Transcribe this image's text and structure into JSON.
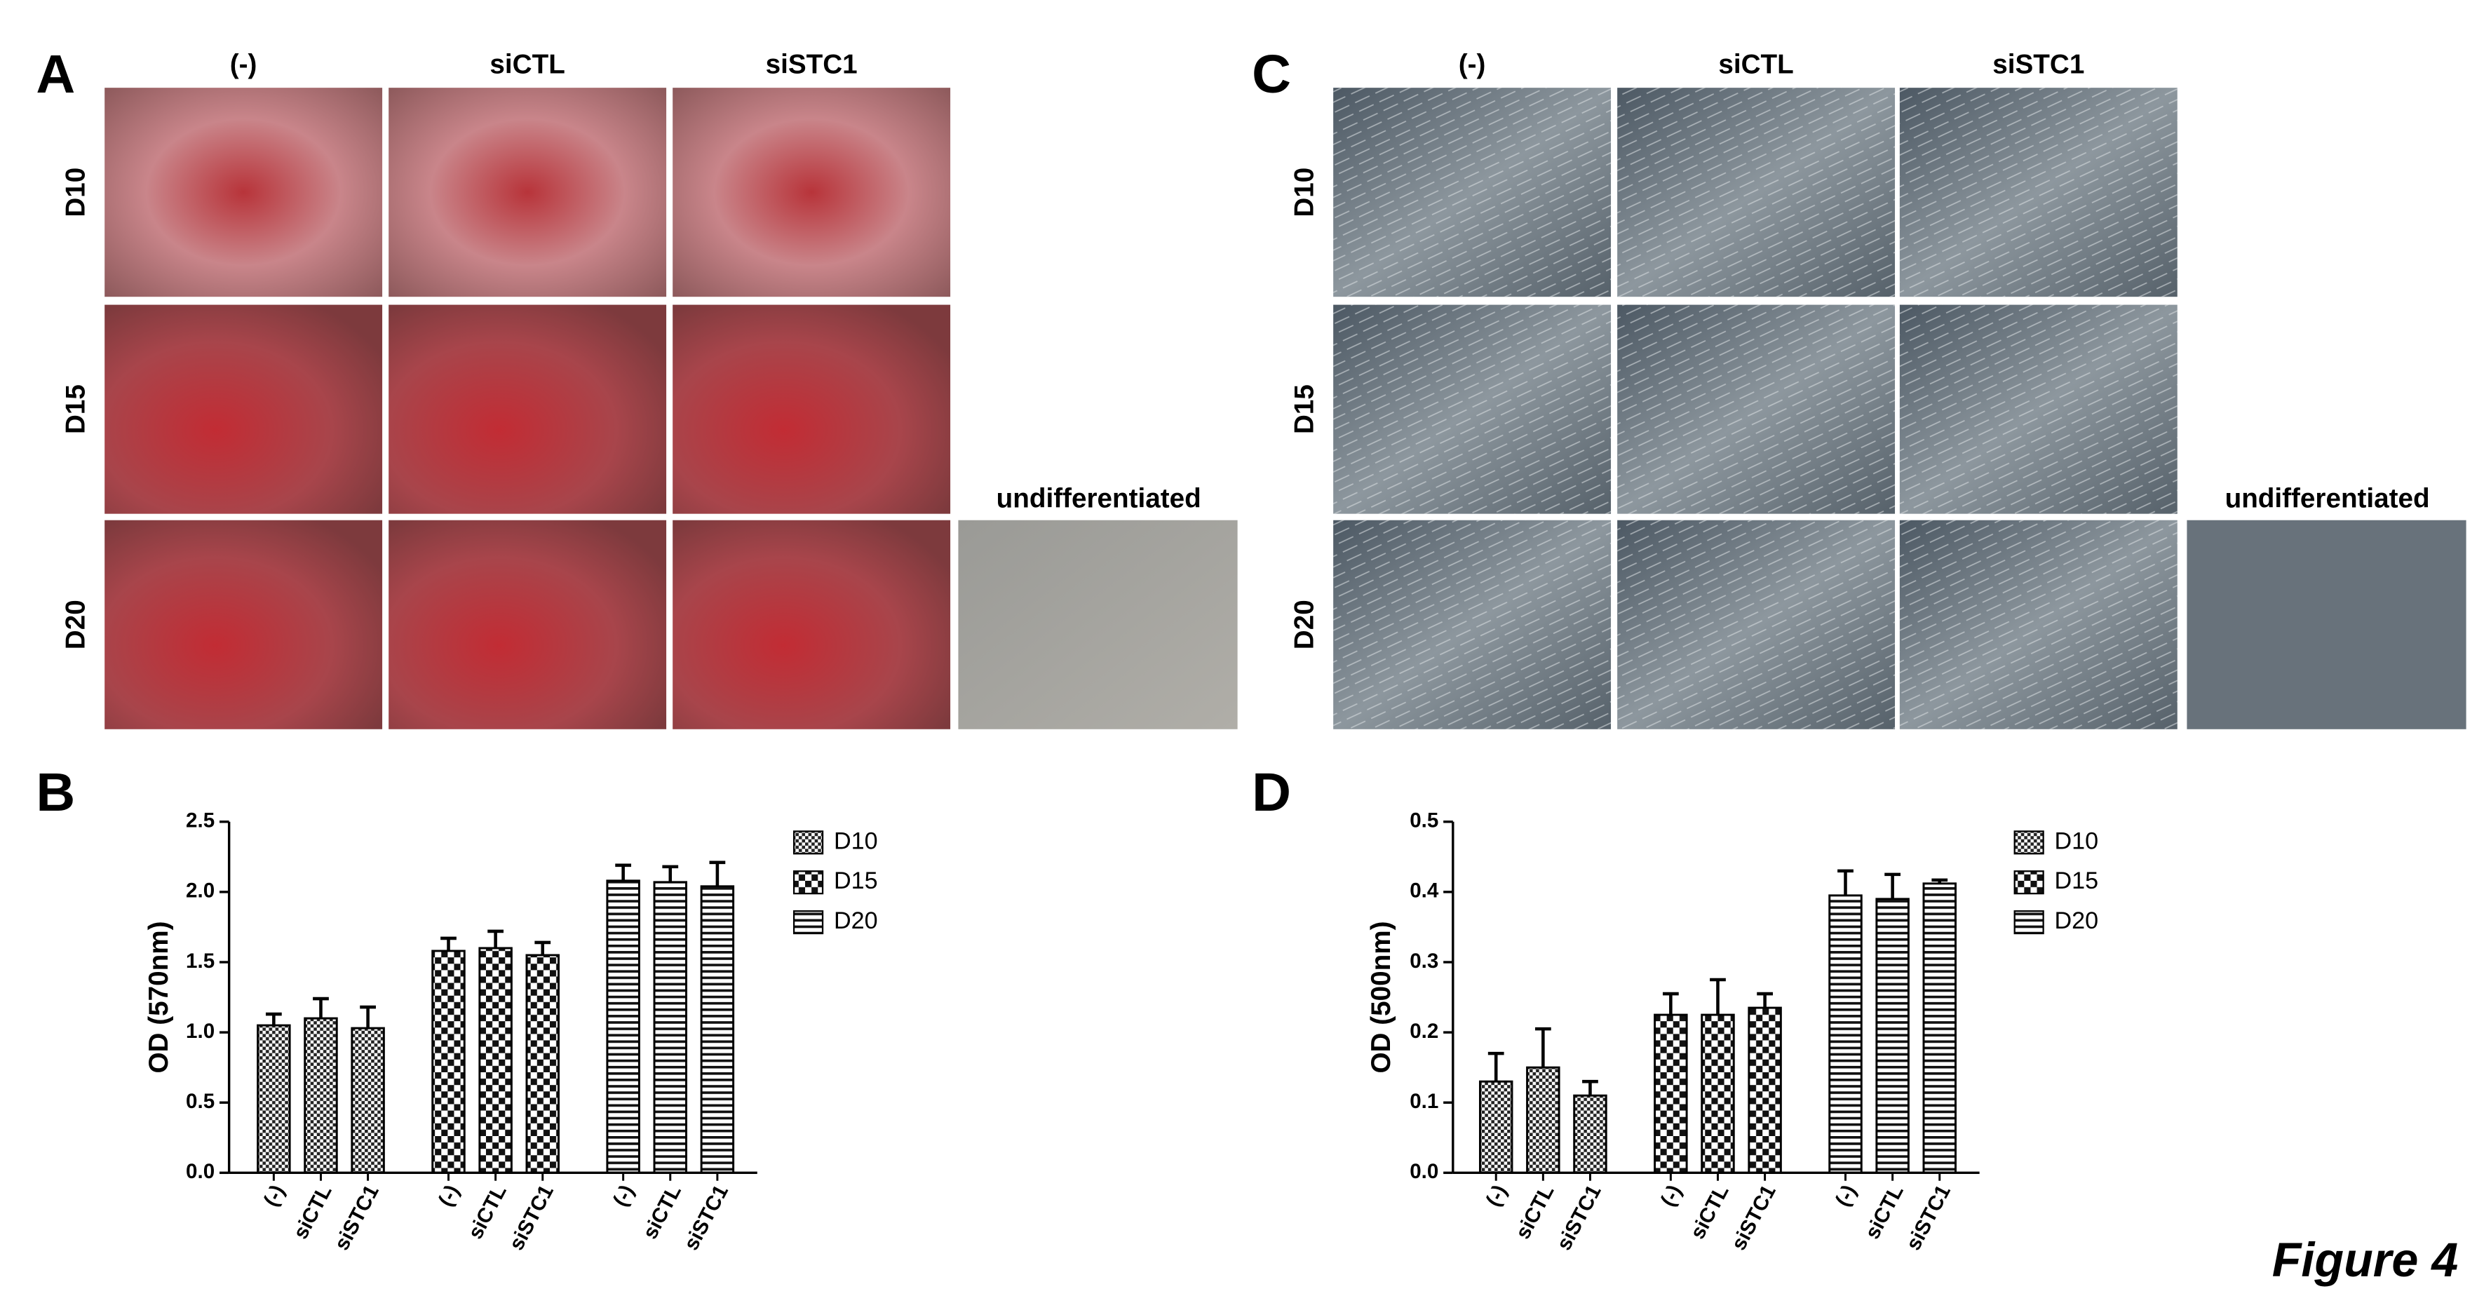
{
  "panels": {
    "a": {
      "letter": "A",
      "columns": [
        "(-)",
        "siCTL",
        "siSTC1"
      ],
      "rows": [
        "D10",
        "D15",
        "D20"
      ],
      "extra": "undifferentiated"
    },
    "c": {
      "letter": "C",
      "columns": [
        "(-)",
        "siCTL",
        "siSTC1"
      ],
      "rows": [
        "D10",
        "D15",
        "D20"
      ],
      "extra": "undifferentiated"
    },
    "b": {
      "letter": "B"
    },
    "d": {
      "letter": "D"
    },
    "figure_label": "Figure 4"
  },
  "chart_data": [
    {
      "type": "bar",
      "y_label": "OD (570nm)",
      "categories": [
        "(-)",
        "siCTL",
        "siSTC1"
      ],
      "series": [
        {
          "name": "D10",
          "pattern": "dense-check",
          "values": [
            1.05,
            1.1,
            1.03
          ],
          "errors": [
            0.08,
            0.14,
            0.15
          ]
        },
        {
          "name": "D15",
          "pattern": "check",
          "values": [
            1.58,
            1.6,
            1.55
          ],
          "errors": [
            0.09,
            0.12,
            0.09
          ]
        },
        {
          "name": "D20",
          "pattern": "hstripe",
          "values": [
            2.08,
            2.07,
            2.04
          ],
          "errors": [
            0.11,
            0.11,
            0.17
          ]
        }
      ],
      "ylim": [
        0,
        2.5
      ],
      "yticks": [
        {
          "value": 0,
          "label": "0.0"
        },
        0.5,
        {
          "value": 1,
          "label": "1.0"
        },
        1.5,
        {
          "value": 2,
          "label": "2.0"
        },
        2.5
      ],
      "legend": "right"
    },
    {
      "type": "bar",
      "y_label": "OD (500nm)",
      "categories": [
        "(-)",
        "siCTL",
        "siSTC1"
      ],
      "series": [
        {
          "name": "D10",
          "pattern": "dense-check",
          "values": [
            0.13,
            0.15,
            0.11
          ],
          "errors": [
            0.04,
            0.055,
            0.02
          ]
        },
        {
          "name": "D15",
          "pattern": "check",
          "values": [
            0.225,
            0.225,
            0.235
          ],
          "errors": [
            0.03,
            0.05,
            0.02
          ]
        },
        {
          "name": "D20",
          "pattern": "hstripe",
          "values": [
            0.395,
            0.39,
            0.412
          ],
          "errors": [
            0.035,
            0.035,
            0.005
          ]
        }
      ],
      "ylim": [
        0,
        0.5
      ],
      "yticks": [
        {
          "value": 0,
          "label": "0.0"
        },
        0.1,
        0.2,
        0.3,
        0.4,
        0.5
      ],
      "legend": "right"
    }
  ]
}
